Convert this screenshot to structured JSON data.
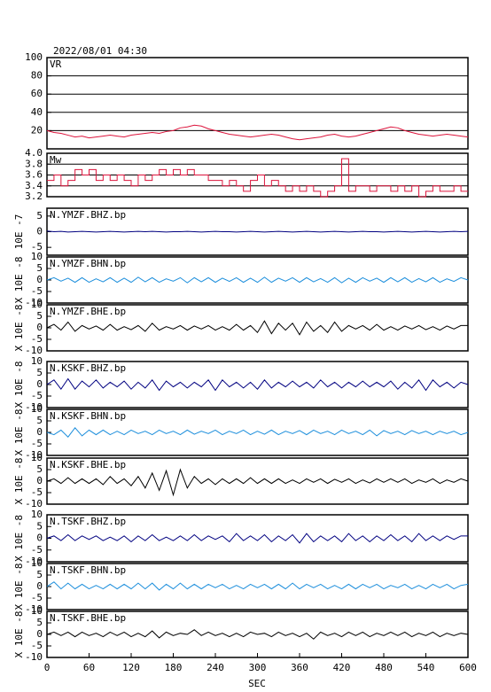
{
  "chart_data": {
    "type": "line",
    "title": "2022/08/01 04:30",
    "xlabel": "SEC",
    "xlim": [
      0,
      600
    ],
    "xticks": [
      0,
      60,
      120,
      180,
      240,
      300,
      360,
      420,
      480,
      540,
      600
    ],
    "x": [
      0,
      10,
      20,
      30,
      40,
      50,
      60,
      70,
      80,
      90,
      100,
      110,
      120,
      130,
      140,
      150,
      160,
      170,
      180,
      190,
      200,
      210,
      220,
      230,
      240,
      250,
      260,
      270,
      280,
      290,
      300,
      310,
      320,
      330,
      340,
      350,
      360,
      370,
      380,
      390,
      400,
      410,
      420,
      430,
      440,
      450,
      460,
      470,
      480,
      490,
      500,
      510,
      520,
      530,
      540,
      550,
      560,
      570,
      580,
      590,
      600
    ],
    "panels": [
      {
        "label": "VR",
        "color": "#dc143c",
        "grid": true,
        "ylim": [
          0,
          100
        ],
        "yticks": [
          20,
          40,
          60,
          80,
          100
        ],
        "values": [
          20,
          18,
          17,
          15,
          13,
          14,
          12,
          13,
          14,
          15,
          14,
          13,
          15,
          16,
          17,
          18,
          17,
          19,
          20,
          23,
          24,
          26,
          25,
          22,
          20,
          18,
          16,
          15,
          14,
          13,
          14,
          15,
          16,
          15,
          13,
          11,
          10,
          11,
          12,
          13,
          15,
          16,
          14,
          13,
          14,
          16,
          18,
          20,
          22,
          24,
          23,
          20,
          18,
          16,
          15,
          14,
          15,
          16,
          15,
          14,
          13
        ]
      },
      {
        "label": "Mw",
        "color": "#dc143c",
        "grid": true,
        "drawstyle": "steps",
        "ylim": [
          3.2,
          4.0
        ],
        "yticks": [
          3.2,
          3.4,
          3.6,
          3.8,
          {
            "value": 4,
            "label": "4.0"
          }
        ],
        "values": [
          3.5,
          3.6,
          3.4,
          3.5,
          3.7,
          3.6,
          3.7,
          3.5,
          3.6,
          3.5,
          3.6,
          3.5,
          3.4,
          3.6,
          3.5,
          3.6,
          3.7,
          3.6,
          3.7,
          3.6,
          3.7,
          3.6,
          3.6,
          3.5,
          3.5,
          3.4,
          3.5,
          3.4,
          3.3,
          3.5,
          3.6,
          3.4,
          3.5,
          3.4,
          3.3,
          3.4,
          3.3,
          3.4,
          3.3,
          3.2,
          3.3,
          3.4,
          3.9,
          3.3,
          3.4,
          3.4,
          3.3,
          3.4,
          3.4,
          3.3,
          3.4,
          3.3,
          3.4,
          3.2,
          3.3,
          3.4,
          3.3,
          3.3,
          3.4,
          3.3,
          3.3
        ]
      },
      {
        "label": "N.YMZF.BHZ.bp",
        "ylabel": "10E -7",
        "color": "#000080",
        "ylim": [
          -7.5,
          7.5
        ],
        "yticks": [
          -5,
          0,
          5
        ],
        "values": [
          0.2,
          0,
          0.1,
          -0.1,
          0,
          0.1,
          0,
          -0.1,
          0,
          0.1,
          0,
          -0.1,
          0,
          0.1,
          0,
          0.1,
          0,
          -0.1,
          0,
          0,
          0.1,
          0,
          -0.1,
          0,
          0.1,
          0,
          0,
          -0.1,
          0,
          0.1,
          0,
          -0.1,
          0,
          0.1,
          0,
          -0.1,
          0,
          0.1,
          0,
          -0.1,
          0,
          0.1,
          0,
          -0.1,
          0,
          0.1,
          0,
          0,
          -0.1,
          0,
          0.1,
          0,
          -0.1,
          0,
          0.1,
          0,
          -0.1,
          0,
          0.1,
          0,
          0.1
        ]
      },
      {
        "label": "N.YMZF.BHN.bp",
        "ylabel": "X 10E -8",
        "color": "#1e8fdc",
        "ylim": [
          -10,
          10
        ],
        "yticks": [
          -10,
          -5,
          0,
          5,
          10
        ],
        "values": [
          0,
          1,
          -0.5,
          0.8,
          -1,
          1,
          -1,
          0.5,
          -0.8,
          1,
          -1,
          0.8,
          -1,
          1.2,
          -0.8,
          1,
          -1,
          0.5,
          -0.5,
          1,
          -1.2,
          1,
          -0.8,
          1,
          -1,
          0.8,
          -0.6,
          1,
          -1,
          0.8,
          -1,
          1.2,
          -1,
          0.8,
          -0.5,
          1,
          -1,
          1,
          -0.8,
          0.6,
          -1,
          1,
          -1.2,
          0.8,
          -1,
          1,
          -0.5,
          0.8,
          -1,
          1,
          -0.8,
          1,
          -1,
          0.6,
          -0.8,
          1,
          -1,
          0.5,
          -0.6,
          1,
          0
        ]
      },
      {
        "label": "N.YMZF.BHE.bp",
        "ylabel": "X 10E -8",
        "color": "#000000",
        "ylim": [
          -10,
          10
        ],
        "yticks": [
          -10,
          -5,
          0,
          5,
          10
        ],
        "values": [
          0,
          1.5,
          -1,
          2.5,
          -1.5,
          1,
          -0.5,
          0.8,
          -1,
          1.5,
          -1,
          0.5,
          -0.8,
          1,
          -1.5,
          2,
          -1,
          0.5,
          -0.5,
          1,
          -1,
          0.8,
          -0.5,
          1,
          -1,
          0.5,
          -1,
          1.5,
          -1,
          1,
          -2,
          3,
          -2.5,
          2,
          -1,
          2,
          -3,
          2.5,
          -1.5,
          1,
          -2,
          2.5,
          -1.5,
          1,
          -0.5,
          1,
          -1,
          1.5,
          -1,
          0.5,
          -1,
          0.8,
          -0.5,
          1,
          -0.8,
          0.5,
          -1,
          0.8,
          -0.5,
          1,
          1
        ]
      },
      {
        "label": "N.KSKF.BHZ.bp",
        "ylabel": "X 10E -8",
        "color": "#000080",
        "ylim": [
          -10,
          10
        ],
        "yticks": [
          -10,
          -5,
          0,
          5,
          10
        ],
        "values": [
          0,
          2,
          -2,
          2.5,
          -2,
          1.5,
          -1,
          2,
          -1.5,
          1,
          -1,
          1.5,
          -2,
          1,
          -1.5,
          2,
          -2.5,
          1.5,
          -1,
          1,
          -1.5,
          1,
          -1,
          2,
          -2.5,
          2,
          -1,
          1,
          -1.5,
          1,
          -2,
          2,
          -1.5,
          1,
          -1,
          1.5,
          -1,
          1,
          -1.5,
          2,
          -1,
          1,
          -1.5,
          1,
          -1,
          1.5,
          -1,
          1,
          -1,
          1.5,
          -2,
          1,
          -1.5,
          2,
          -2.5,
          2,
          -1,
          1,
          -1.5,
          1,
          0
        ]
      },
      {
        "label": "N.KSKF.BHN.bp",
        "ylabel": "X 10E -8",
        "color": "#1e8fdc",
        "ylim": [
          -10,
          10
        ],
        "yticks": [
          -10,
          -5,
          0,
          5,
          10
        ],
        "values": [
          0,
          -1,
          1,
          -2,
          2,
          -1.5,
          1,
          -1,
          1,
          -1,
          0.5,
          -1,
          1,
          -0.5,
          0.5,
          -1,
          1,
          -0.5,
          0.5,
          -1,
          1,
          -0.8,
          0.5,
          -0.5,
          1,
          -1,
          0.5,
          -0.5,
          1,
          -1,
          0.5,
          -0.8,
          1,
          -1,
          0.5,
          -0.5,
          0.8,
          -1,
          1,
          -0.5,
          0.5,
          -1,
          1,
          -0.5,
          0.5,
          -1,
          1,
          -1.5,
          0.8,
          -0.5,
          0.5,
          -1,
          0.8,
          -0.5,
          0.5,
          -1,
          0.5,
          -0.5,
          0.5,
          -1,
          0
        ]
      },
      {
        "label": "N.KSKF.BHE.bp",
        "ylabel": "X 10E -8",
        "color": "#000000",
        "ylim": [
          -10,
          10
        ],
        "yticks": [
          -10,
          -5,
          0,
          5,
          10
        ],
        "values": [
          0,
          1,
          -1,
          1.5,
          -1,
          1,
          -1,
          1,
          -1.5,
          2,
          -1,
          1,
          -2,
          2,
          -3,
          3.5,
          -4,
          4.5,
          -6,
          5,
          -3,
          2,
          -1,
          1,
          -1.5,
          1,
          -1,
          1,
          -1,
          1.5,
          -1,
          1,
          -1,
          1,
          -1,
          0.5,
          -1,
          1,
          -0.5,
          1,
          -1,
          0.8,
          -0.5,
          1,
          -1,
          0.5,
          -0.8,
          1,
          -0.5,
          1,
          -0.5,
          1,
          -1,
          0.5,
          -0.5,
          1,
          -1,
          0.5,
          -0.5,
          1,
          0
        ]
      },
      {
        "label": "N.TSKF.BHZ.bp",
        "ylabel": "X 10E -8",
        "color": "#000080",
        "ylim": [
          -10,
          10
        ],
        "yticks": [
          -10,
          -5,
          0,
          5,
          10
        ],
        "values": [
          0,
          1,
          -1,
          1.5,
          -1,
          1,
          -0.5,
          1,
          -1,
          0.5,
          -1,
          1,
          -1.5,
          1,
          -1,
          1.5,
          -1,
          0.5,
          -1,
          1,
          -1,
          1.5,
          -1,
          1,
          -0.5,
          1,
          -1.5,
          2,
          -1,
          1,
          -1,
          1.5,
          -1.5,
          1,
          -1,
          1.5,
          -2,
          2,
          -1.5,
          1,
          -1,
          1,
          -1.5,
          2,
          -1,
          1,
          -1.5,
          1,
          -1,
          1.5,
          -1,
          1,
          -1.5,
          2,
          -1,
          1,
          -1,
          1,
          -0.5,
          1,
          1
        ]
      },
      {
        "label": "N.TSKF.BHN.bp",
        "ylabel": "X 10E -8",
        "color": "#1e8fdc",
        "ylim": [
          -10,
          10
        ],
        "yticks": [
          -10,
          -5,
          0,
          5,
          10
        ],
        "values": [
          0,
          2,
          -1,
          1.5,
          -1,
          1,
          -1,
          0.5,
          -1,
          1,
          -1,
          1,
          -1,
          1.5,
          -1,
          1.5,
          -1.5,
          1,
          -1,
          1.5,
          -1,
          1,
          -1,
          1,
          -0.5,
          1,
          -1,
          0.5,
          -1,
          1,
          -0.5,
          1,
          -1,
          1,
          -1,
          1.5,
          -1,
          1,
          -0.5,
          1,
          -1,
          0.5,
          -1,
          1,
          -1,
          1,
          -0.5,
          1,
          -1,
          0.5,
          -0.5,
          1,
          -1,
          0.5,
          -1,
          1,
          -0.5,
          1,
          -1,
          0.5,
          1
        ]
      },
      {
        "label": "N.TSKF.BHE.bp",
        "ylabel": "X 10E -8",
        "color": "#000000",
        "ylim": [
          -10,
          10
        ],
        "yticks": [
          -10,
          -5,
          0,
          5,
          10
        ],
        "values": [
          0,
          1,
          -0.5,
          1,
          -1,
          1,
          -0.5,
          0.5,
          -1,
          1,
          -0.5,
          1,
          -1,
          0.5,
          -1,
          1.5,
          -1.5,
          1,
          -0.5,
          0.5,
          0,
          2,
          -0.5,
          1,
          -0.5,
          0.5,
          -1,
          0.5,
          -1,
          1,
          0,
          0.5,
          -1,
          1,
          -0.5,
          0.5,
          -1,
          0.5,
          -2,
          1,
          -0.5,
          0.5,
          -1,
          1,
          -0.5,
          1,
          -1,
          0.5,
          -0.5,
          1,
          -0.5,
          1,
          -1,
          0.5,
          -0.5,
          1,
          -1,
          0.5,
          -0.5,
          0.5,
          0
        ]
      }
    ]
  }
}
